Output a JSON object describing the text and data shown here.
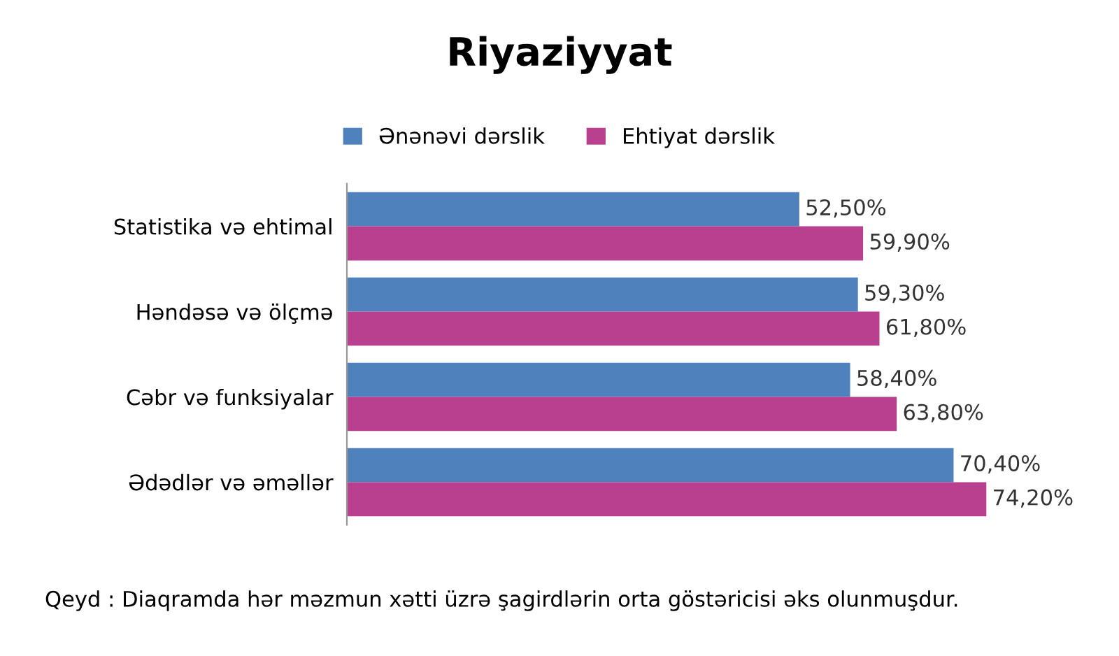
{
  "chart_data": {
    "type": "bar",
    "orientation": "horizontal",
    "title": "Riyaziyyat",
    "categories": [
      "Statistika və ehtimal",
      "Həndəsə və ölçmə",
      "Cəbr və funksiyalar",
      "Ədədlər və əməllər"
    ],
    "series": [
      {
        "name": "Ənənəvi dərslik",
        "color": "#4f81bd",
        "values": [
          52.5,
          59.3,
          58.4,
          70.4
        ],
        "value_labels": [
          "52,50%",
          "59,30%",
          "58,40%",
          "70,40%"
        ]
      },
      {
        "name": "Ehtiyat dərslik",
        "color": "#b8408f",
        "values": [
          59.9,
          61.8,
          63.8,
          74.2
        ],
        "value_labels": [
          "59,90%",
          "61,80%",
          "63,80%",
          "74,20%"
        ]
      }
    ],
    "tick_labels": "y",
    "grid": false,
    "legend": "top",
    "annotations": [
      "Qeyd : Diaqramda hər məzmun xətti üzrə şagirdlərin orta göstəricisi əks olunmuşdur."
    ]
  }
}
